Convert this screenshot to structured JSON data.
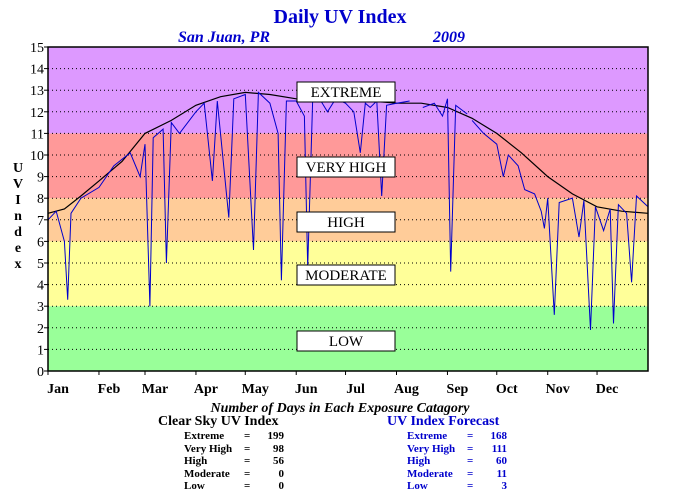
{
  "chart_data": {
    "type": "line",
    "title": "Daily UV Index",
    "subtitle_location": "San Juan, PR",
    "subtitle_year": "2009",
    "ylabel": "U V I n d e x",
    "ylim": [
      0,
      15
    ],
    "yticks": [
      "0",
      "1",
      "2",
      "3",
      "4",
      "5",
      "6",
      "7",
      "8",
      "9",
      "10",
      "11",
      "12",
      "13",
      "14",
      "15"
    ],
    "xlim": [
      0,
      365
    ],
    "months": [
      {
        "label": "Jan",
        "day": 0
      },
      {
        "label": "Feb",
        "day": 31
      },
      {
        "label": "Mar",
        "day": 59
      },
      {
        "label": "Apr",
        "day": 90
      },
      {
        "label": "May",
        "day": 120
      },
      {
        "label": "Jun",
        "day": 151
      },
      {
        "label": "Jul",
        "day": 181
      },
      {
        "label": "Aug",
        "day": 212
      },
      {
        "label": "Sep",
        "day": 243
      },
      {
        "label": "Oct",
        "day": 273
      },
      {
        "label": "Nov",
        "day": 304
      },
      {
        "label": "Dec",
        "day": 334
      }
    ],
    "bands": [
      {
        "label": "LOW",
        "from": 0,
        "to": 3,
        "color": "#99ff99"
      },
      {
        "label": "MODERATE",
        "from": 3,
        "to": 6,
        "color": "#ffff99"
      },
      {
        "label": "HIGH",
        "from": 6,
        "to": 8,
        "color": "#ffcc99"
      },
      {
        "label": "VERY HIGH",
        "from": 8,
        "to": 11,
        "color": "#ff9999"
      },
      {
        "label": "EXTREME",
        "from": 11,
        "to": 15,
        "color": "#dd99ff"
      }
    ],
    "grid": true,
    "series": [
      {
        "name": "Clear Sky UV Index",
        "color": "#000000",
        "points": [
          [
            0,
            7.3
          ],
          [
            10,
            7.5
          ],
          [
            20,
            8.1
          ],
          [
            31,
            8.8
          ],
          [
            45,
            9.7
          ],
          [
            59,
            11.0
          ],
          [
            75,
            11.6
          ],
          [
            90,
            12.3
          ],
          [
            105,
            12.7
          ],
          [
            120,
            12.9
          ],
          [
            135,
            12.8
          ],
          [
            151,
            12.6
          ],
          [
            166,
            12.5
          ],
          [
            181,
            12.5
          ],
          [
            196,
            12.5
          ],
          [
            212,
            12.4
          ],
          [
            227,
            12.4
          ],
          [
            243,
            12.2
          ],
          [
            258,
            11.7
          ],
          [
            273,
            11.0
          ],
          [
            288,
            10.1
          ],
          [
            304,
            9.0
          ],
          [
            319,
            8.2
          ],
          [
            334,
            7.6
          ],
          [
            349,
            7.4
          ],
          [
            365,
            7.3
          ]
        ]
      },
      {
        "name": "UV Index Forecast",
        "color": "#0000cc",
        "points": [
          [
            0,
            7.0
          ],
          [
            5,
            7.4
          ],
          [
            10,
            6.0
          ],
          [
            12,
            3.3
          ],
          [
            14,
            7.3
          ],
          [
            20,
            8.0
          ],
          [
            31,
            8.5
          ],
          [
            40,
            9.5
          ],
          [
            50,
            10.1
          ],
          [
            56,
            9.0
          ],
          [
            59,
            10.5
          ],
          [
            62,
            3.0
          ],
          [
            64,
            10.8
          ],
          [
            70,
            11.2
          ],
          [
            72,
            5.0
          ],
          [
            75,
            11.5
          ],
          [
            80,
            11.0
          ],
          [
            90,
            12.0
          ],
          [
            95,
            12.4
          ],
          [
            100,
            8.8
          ],
          [
            103,
            12.5
          ],
          [
            110,
            7.1
          ],
          [
            113,
            12.6
          ],
          [
            120,
            12.8
          ],
          [
            125,
            5.6
          ],
          [
            128,
            12.9
          ],
          [
            135,
            12.4
          ],
          [
            140,
            11.0
          ],
          [
            142,
            4.2
          ],
          [
            145,
            12.5
          ],
          [
            151,
            12.5
          ],
          [
            156,
            11.8
          ],
          [
            158,
            4.8
          ],
          [
            161,
            12.6
          ],
          [
            166,
            12.5
          ],
          [
            170,
            12.0
          ],
          [
            175,
            12.6
          ],
          [
            181,
            12.4
          ],
          [
            186,
            12.0
          ],
          [
            190,
            10.1
          ],
          [
            193,
            12.4
          ],
          [
            196,
            12.2
          ],
          [
            200,
            12.5
          ],
          [
            203,
            8.1
          ],
          [
            206,
            12.3
          ],
          [
            212,
            12.4
          ],
          [
            220,
            12.5
          ]
        ],
        "segments_after": [
          [
            [
              228,
              12.2
            ],
            [
              235,
              12.4
            ],
            [
              240,
              11.8
            ],
            [
              243,
              12.6
            ],
            [
              245,
              4.6
            ],
            [
              248,
              12.3
            ],
            [
              255,
              11.9
            ]
          ],
          [
            [
              258,
              11.6
            ],
            [
              265,
              11.0
            ],
            [
              273,
              10.5
            ],
            [
              277,
              9.0
            ],
            [
              280,
              10.0
            ],
            [
              286,
              9.5
            ],
            [
              290,
              8.4
            ],
            [
              296,
              8.2
            ],
            [
              300,
              7.4
            ],
            [
              302,
              6.6
            ],
            [
              304,
              8.0
            ],
            [
              308,
              2.6
            ],
            [
              311,
              7.8
            ],
            [
              319,
              8.0
            ],
            [
              323,
              6.2
            ],
            [
              326,
              7.9
            ],
            [
              330,
              1.9
            ],
            [
              333,
              7.6
            ],
            [
              338,
              6.5
            ],
            [
              342,
              7.5
            ],
            [
              344,
              2.2
            ],
            [
              347,
              7.7
            ],
            [
              352,
              7.3
            ],
            [
              355,
              4.1
            ],
            [
              358,
              8.1
            ],
            [
              365,
              7.6
            ]
          ]
        ]
      }
    ],
    "stats_title": "Number of Days in Each Exposure Catagory",
    "clear_sky": {
      "title": "Clear Sky UV Index",
      "rows": [
        {
          "name": "Extreme",
          "eq": "=",
          "value": "199"
        },
        {
          "name": "Very High",
          "eq": "=",
          "value": "98"
        },
        {
          "name": "High",
          "eq": "=",
          "value": "56"
        },
        {
          "name": "Moderate",
          "eq": "=",
          "value": "0"
        },
        {
          "name": "Low",
          "eq": "=",
          "value": "0"
        }
      ]
    },
    "forecast": {
      "title": "UV Index Forecast",
      "rows": [
        {
          "name": "Extreme",
          "eq": "=",
          "value": "168"
        },
        {
          "name": "Very High",
          "eq": "=",
          "value": "111"
        },
        {
          "name": "High",
          "eq": "=",
          "value": "60"
        },
        {
          "name": "Moderate",
          "eq": "=",
          "value": "11"
        },
        {
          "name": "Low",
          "eq": "=",
          "value": "3"
        }
      ]
    }
  }
}
